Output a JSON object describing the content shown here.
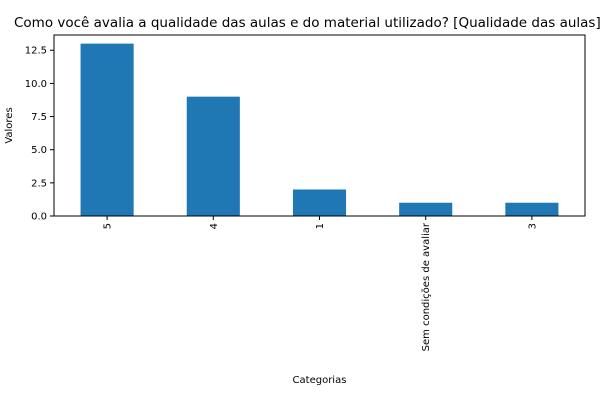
{
  "chart_data": {
    "type": "bar",
    "title": "Como você avalia a qualidade das aulas e do material utilizado?  [Qualidade das aulas]",
    "xlabel": "Categorias",
    "ylabel": "Valores",
    "categories": [
      "5",
      "4",
      "1",
      "Sem condições de avaliar",
      "3"
    ],
    "values": [
      13,
      9,
      2,
      1,
      1
    ],
    "ylim": [
      0,
      13.65
    ],
    "yticks": [
      "0.0",
      "2.5",
      "5.0",
      "7.5",
      "10.0",
      "12.5"
    ],
    "ytick_values": [
      0,
      2.5,
      5,
      7.5,
      10,
      12.5
    ],
    "bar_color": "#1f77b4",
    "grid": false,
    "legend": "none"
  }
}
